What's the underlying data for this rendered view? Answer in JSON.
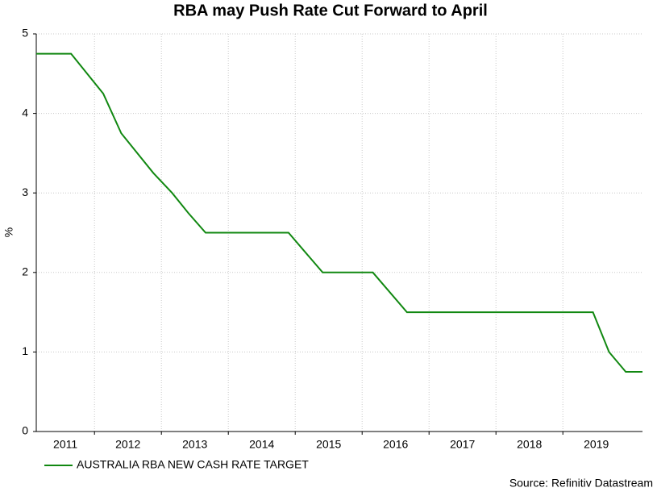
{
  "chart_data": {
    "type": "line",
    "title": "RBA may Push Rate Cut Forward to April",
    "y_label": "%",
    "source": "Source: Refinitiv Datastream",
    "x": [
      2011.13,
      2011.65,
      2012.13,
      2012.4,
      2012.88,
      2013.16,
      2013.4,
      2013.66,
      2014.9,
      2015.41,
      2016.16,
      2016.67,
      2019.45,
      2019.69,
      2019.94,
      2020.19
    ],
    "series": [
      {
        "name": "AUSTRALIA RBA NEW CASH RATE TARGET",
        "color": "#118811",
        "values": [
          4.75,
          4.75,
          4.25,
          3.75,
          3.25,
          3.0,
          2.75,
          2.5,
          2.5,
          2.0,
          2.0,
          1.5,
          1.5,
          1.0,
          0.75,
          0.75
        ]
      }
    ],
    "xlim": [
      2011.13,
      2020.19
    ],
    "xticks": [
      2011,
      2012,
      2013,
      2014,
      2015,
      2016,
      2017,
      2018,
      2019
    ],
    "ylim": [
      0,
      5
    ],
    "yticks": [
      0,
      1,
      2,
      3,
      4,
      5
    ],
    "grid": true,
    "legend": "bottom-left"
  }
}
